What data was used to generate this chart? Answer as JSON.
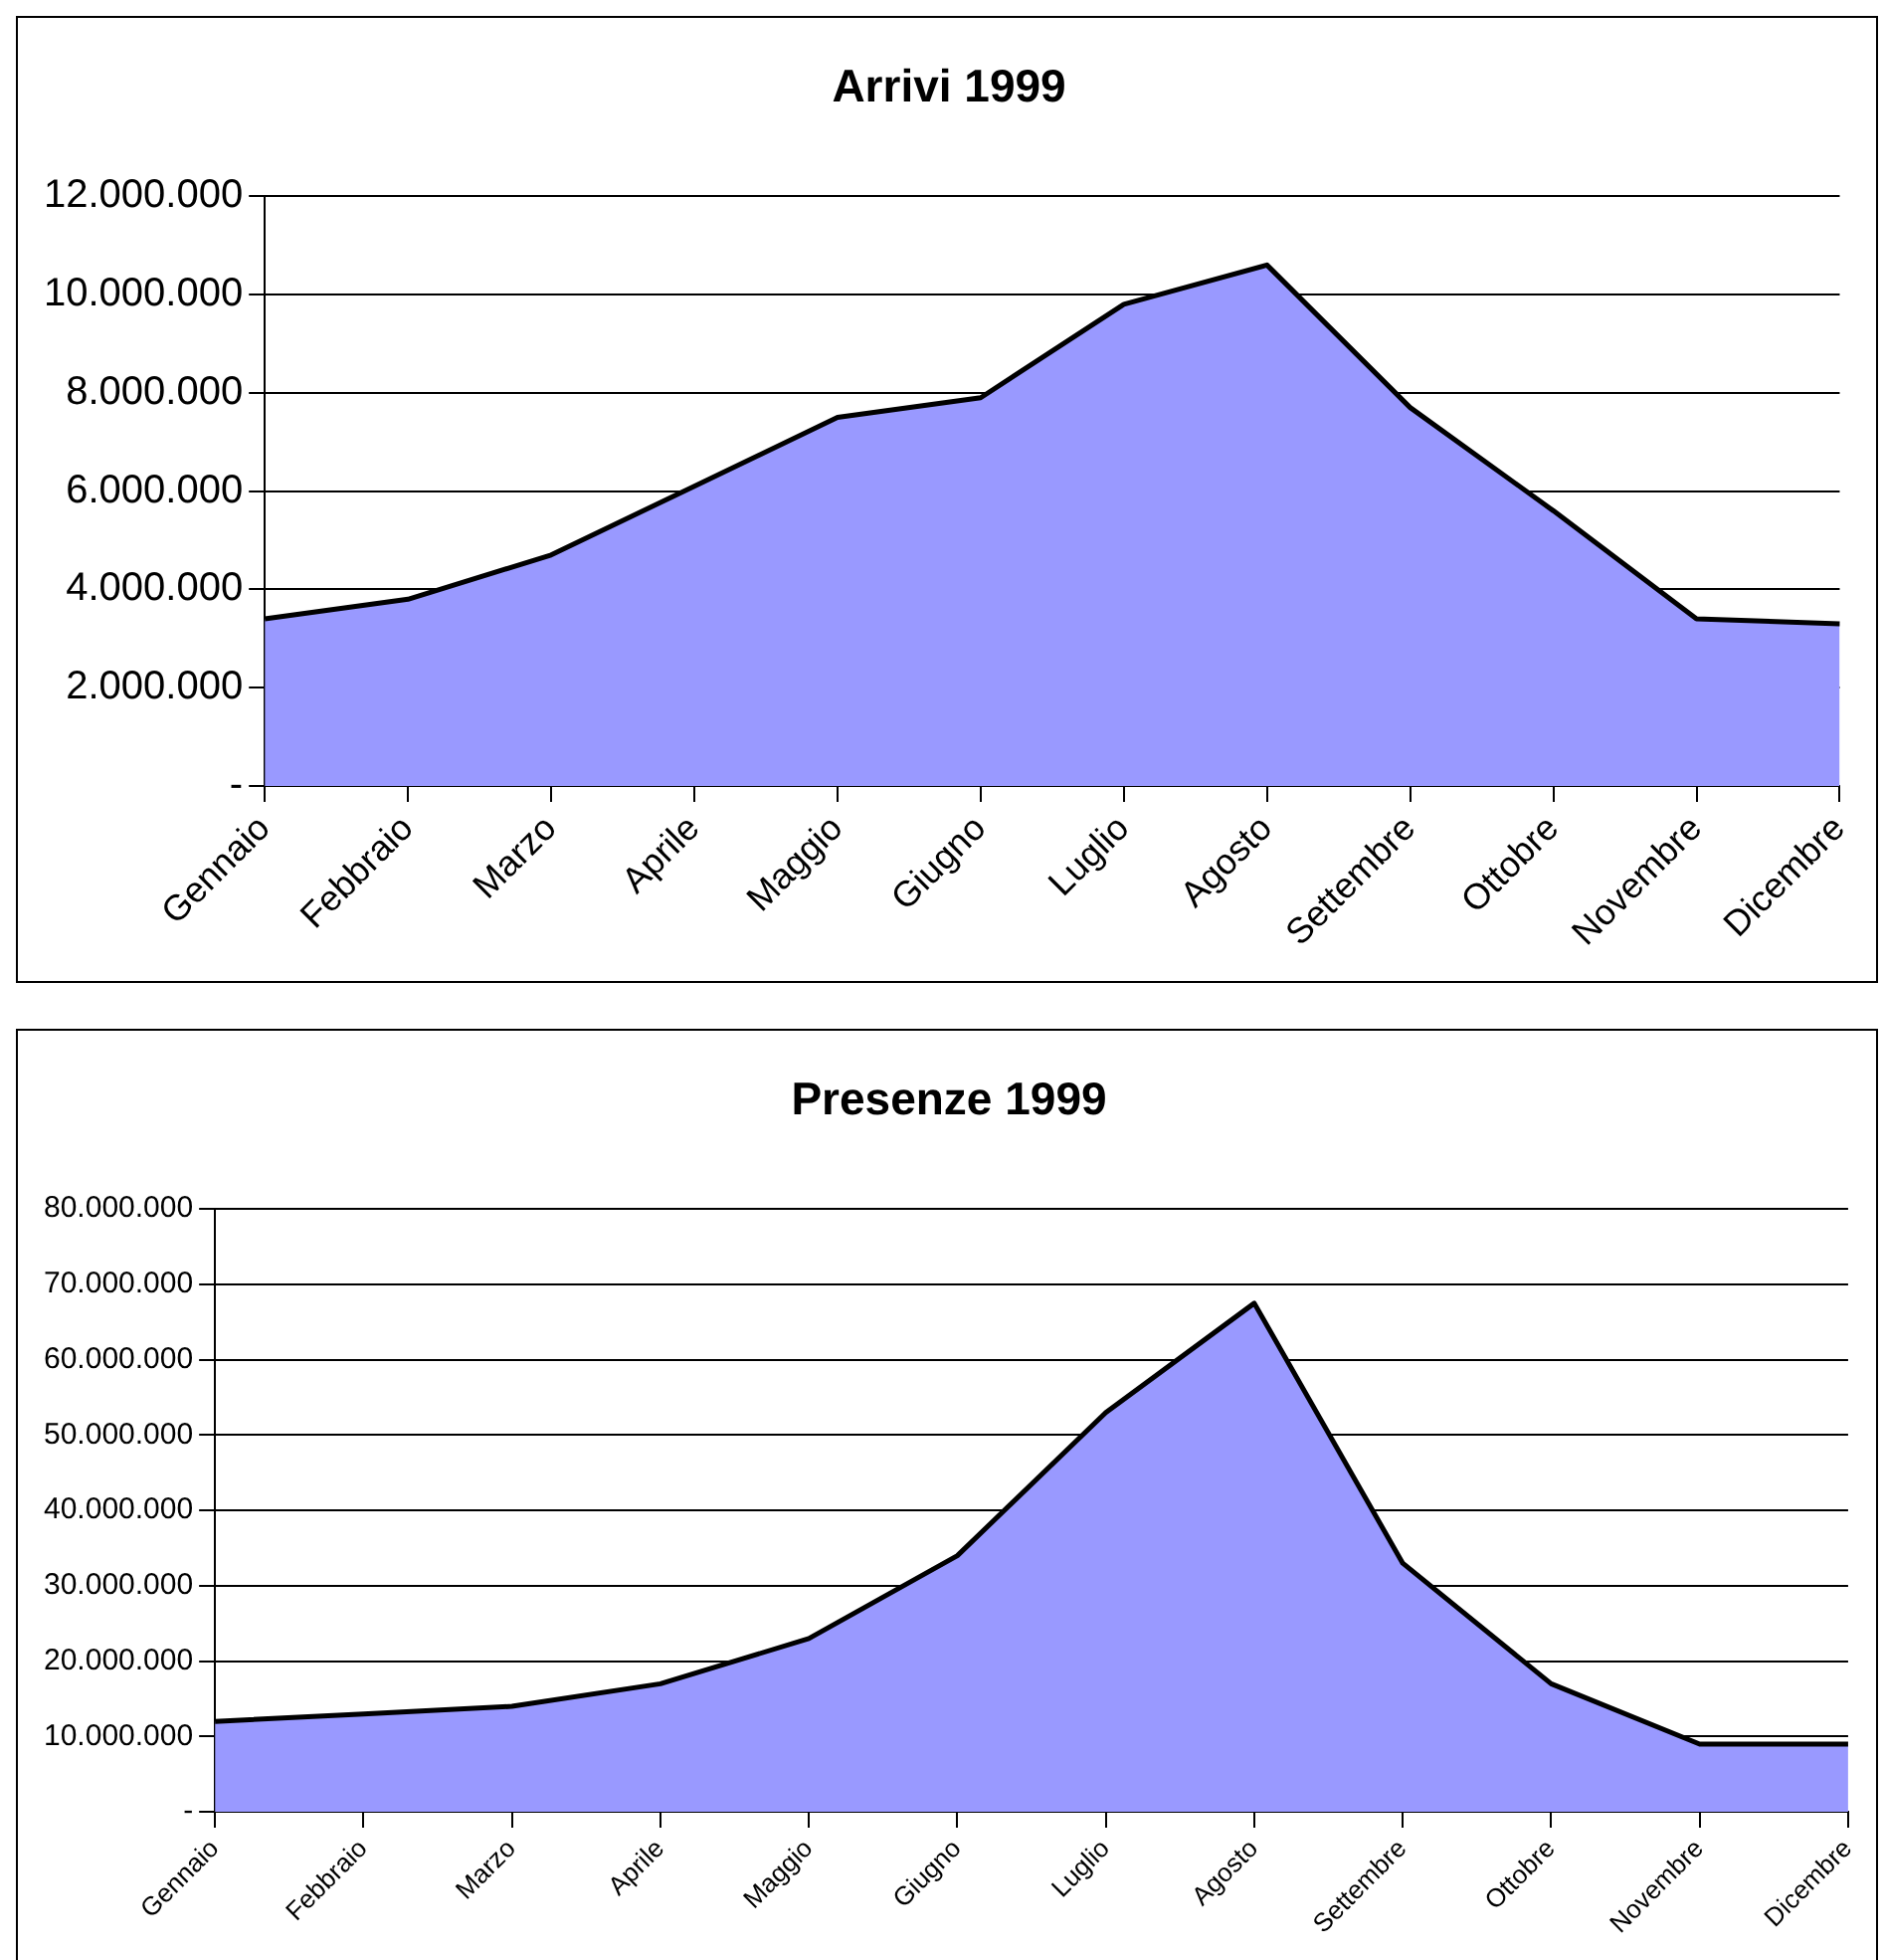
{
  "chart_data": [
    {
      "type": "area",
      "title": "Arrivi 1999",
      "categories": [
        "Gennaio",
        "Febbraio",
        "Marzo",
        "Aprile",
        "Maggio",
        "Giugno",
        "Luglio",
        "Agosto",
        "Settembre",
        "Ottobre",
        "Novembre",
        "Dicembre"
      ],
      "values": [
        3400000,
        3800000,
        4700000,
        6100000,
        7500000,
        7900000,
        9800000,
        10600000,
        7700000,
        5600000,
        3400000,
        3300000
      ],
      "color": "#9999ff",
      "ylim": [
        0,
        12000000
      ],
      "yticks": [
        {
          "value": 0,
          "label": "-"
        },
        {
          "value": 2000000,
          "label": "2.000.000"
        },
        {
          "value": 4000000,
          "label": "4.000.000"
        },
        {
          "value": 6000000,
          "label": "6.000.000"
        },
        {
          "value": 8000000,
          "label": "8.000.000"
        },
        {
          "value": 10000000,
          "label": "10.000.000"
        },
        {
          "value": 12000000,
          "label": "12.000.000"
        }
      ],
      "grid": "y"
    },
    {
      "type": "area",
      "title": "Presenze 1999",
      "categories": [
        "Gennaio",
        "Febbraio",
        "Marzo",
        "Aprile",
        "Maggio",
        "Giugno",
        "Luglio",
        "Agosto",
        "Settembre",
        "Ottobre",
        "Novembre",
        "Dicembre"
      ],
      "values": [
        12000000,
        13000000,
        14000000,
        17000000,
        23000000,
        34000000,
        53000000,
        67500000,
        33000000,
        17000000,
        9000000,
        9000000
      ],
      "color": "#9999ff",
      "ylim": [
        0,
        80000000
      ],
      "yticks": [
        {
          "value": 0,
          "label": "-"
        },
        {
          "value": 10000000,
          "label": "10.000.000"
        },
        {
          "value": 20000000,
          "label": "20.000.000"
        },
        {
          "value": 30000000,
          "label": "30.000.000"
        },
        {
          "value": 40000000,
          "label": "40.000.000"
        },
        {
          "value": 50000000,
          "label": "50.000.000"
        },
        {
          "value": 60000000,
          "label": "60.000.000"
        },
        {
          "value": 70000000,
          "label": "70.000.000"
        },
        {
          "value": 80000000,
          "label": "80.000.000"
        }
      ],
      "grid": "y"
    }
  ]
}
